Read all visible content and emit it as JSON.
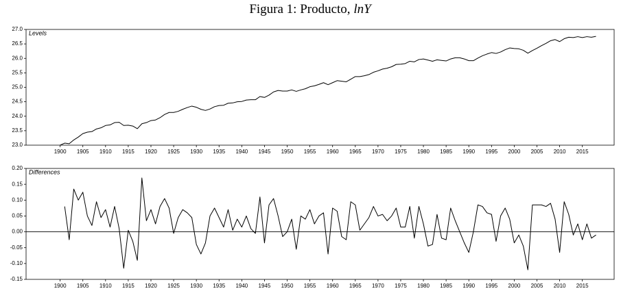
{
  "title": {
    "text": "Figura 1: Producto, ",
    "math": "lnY"
  },
  "chart_data": [
    {
      "type": "line",
      "label": "Levels",
      "color": "#000000",
      "x": [
        1900,
        1901,
        1902,
        1903,
        1904,
        1905,
        1906,
        1907,
        1908,
        1909,
        1910,
        1911,
        1912,
        1913,
        1914,
        1915,
        1916,
        1917,
        1918,
        1919,
        1920,
        1921,
        1922,
        1923,
        1924,
        1925,
        1926,
        1927,
        1928,
        1929,
        1930,
        1931,
        1932,
        1933,
        1934,
        1935,
        1936,
        1937,
        1938,
        1939,
        1940,
        1941,
        1942,
        1943,
        1944,
        1945,
        1946,
        1947,
        1948,
        1949,
        1950,
        1951,
        1952,
        1953,
        1954,
        1955,
        1956,
        1957,
        1958,
        1959,
        1960,
        1961,
        1962,
        1963,
        1964,
        1965,
        1966,
        1967,
        1968,
        1969,
        1970,
        1971,
        1972,
        1973,
        1974,
        1975,
        1976,
        1977,
        1978,
        1979,
        1980,
        1981,
        1982,
        1983,
        1984,
        1985,
        1986,
        1987,
        1988,
        1989,
        1990,
        1991,
        1992,
        1993,
        1994,
        1995,
        1996,
        1997,
        1998,
        1999,
        2000,
        2001,
        2002,
        2003,
        2004,
        2005,
        2006,
        2007,
        2008,
        2009,
        2010,
        2011,
        2012,
        2013,
        2014,
        2015,
        2016,
        2017,
        2018
      ],
      "values": [
        23.0,
        23.07,
        23.05,
        23.18,
        23.28,
        23.4,
        23.45,
        23.47,
        23.56,
        23.6,
        23.68,
        23.7,
        23.78,
        23.79,
        23.68,
        23.69,
        23.66,
        23.57,
        23.74,
        23.78,
        23.85,
        23.87,
        23.95,
        24.06,
        24.13,
        24.13,
        24.17,
        24.24,
        24.3,
        24.35,
        24.31,
        24.24,
        24.2,
        24.25,
        24.33,
        24.37,
        24.38,
        24.45,
        24.46,
        24.5,
        24.51,
        24.56,
        24.57,
        24.57,
        24.68,
        24.65,
        24.73,
        24.84,
        24.89,
        24.87,
        24.87,
        24.91,
        24.86,
        24.91,
        24.95,
        25.02,
        25.05,
        25.1,
        25.16,
        25.09,
        25.16,
        25.23,
        25.21,
        25.19,
        25.28,
        25.37,
        25.37,
        25.4,
        25.44,
        25.52,
        25.57,
        25.63,
        25.66,
        25.71,
        25.79,
        25.8,
        25.82,
        25.9,
        25.88,
        25.96,
        25.98,
        25.94,
        25.9,
        25.95,
        25.93,
        25.91,
        25.98,
        26.02,
        26.02,
        25.98,
        25.92,
        25.92,
        26.01,
        26.09,
        26.15,
        26.2,
        26.17,
        26.22,
        26.3,
        26.36,
        26.34,
        26.33,
        26.28,
        26.18,
        26.27,
        26.35,
        26.44,
        26.52,
        26.61,
        26.65,
        26.58,
        26.68,
        26.73,
        26.72,
        26.75,
        26.72,
        26.75,
        26.73,
        26.76
      ],
      "xlim": [
        1892.5,
        2022
      ],
      "xticks": [
        1900,
        1905,
        1910,
        1915,
        1920,
        1925,
        1930,
        1935,
        1940,
        1945,
        1950,
        1955,
        1960,
        1965,
        1970,
        1975,
        1980,
        1985,
        1990,
        1995,
        2000,
        2005,
        2010,
        2015
      ],
      "ylim": [
        23,
        27
      ],
      "yticks": [
        {
          "value": 23,
          "label": "23.0"
        },
        23.5,
        {
          "value": 24,
          "label": "24.0"
        },
        24.5,
        {
          "value": 25,
          "label": "25.0"
        },
        25.5,
        {
          "value": 26,
          "label": "26.0"
        },
        26.5,
        {
          "value": 27,
          "label": "27.0"
        }
      ],
      "zero_line": false
    },
    {
      "type": "line",
      "label": "Differences",
      "color": "#000000",
      "x": [
        1900,
        1901,
        1902,
        1903,
        1904,
        1905,
        1906,
        1907,
        1908,
        1909,
        1910,
        1911,
        1912,
        1913,
        1914,
        1915,
        1916,
        1917,
        1918,
        1919,
        1920,
        1921,
        1922,
        1923,
        1924,
        1925,
        1926,
        1927,
        1928,
        1929,
        1930,
        1931,
        1932,
        1933,
        1934,
        1935,
        1936,
        1937,
        1938,
        1939,
        1940,
        1941,
        1942,
        1943,
        1944,
        1945,
        1946,
        1947,
        1948,
        1949,
        1950,
        1951,
        1952,
        1953,
        1954,
        1955,
        1956,
        1957,
        1958,
        1959,
        1960,
        1961,
        1962,
        1963,
        1964,
        1965,
        1966,
        1967,
        1968,
        1969,
        1970,
        1971,
        1972,
        1973,
        1974,
        1975,
        1976,
        1977,
        1978,
        1979,
        1980,
        1981,
        1982,
        1983,
        1984,
        1985,
        1986,
        1987,
        1988,
        1989,
        1990,
        1991,
        1992,
        1993,
        1994,
        1995,
        1996,
        1997,
        1998,
        1999,
        2000,
        2001,
        2002,
        2003,
        2004,
        2005,
        2006,
        2007,
        2008,
        2009,
        2010,
        2011,
        2012,
        2013,
        2014,
        2015,
        2016,
        2017,
        2018
      ],
      "values": [
        null,
        0.08,
        -0.025,
        0.135,
        0.1,
        0.125,
        0.05,
        0.02,
        0.095,
        0.045,
        0.07,
        0.015,
        0.08,
        0.01,
        -0.115,
        0.005,
        -0.03,
        -0.09,
        0.17,
        0.035,
        0.07,
        0.025,
        0.08,
        0.105,
        0.075,
        -0.005,
        0.045,
        0.07,
        0.06,
        0.045,
        -0.04,
        -0.07,
        -0.035,
        0.05,
        0.075,
        0.045,
        0.015,
        0.07,
        0.005,
        0.04,
        0.015,
        0.05,
        0.01,
        -0.005,
        0.11,
        -0.035,
        0.085,
        0.105,
        0.05,
        -0.015,
        0.0,
        0.04,
        -0.055,
        0.05,
        0.04,
        0.07,
        0.025,
        0.05,
        0.06,
        -0.07,
        0.075,
        0.065,
        -0.015,
        -0.025,
        0.095,
        0.085,
        0.005,
        0.025,
        0.045,
        0.08,
        0.05,
        0.055,
        0.035,
        0.05,
        0.075,
        0.015,
        0.015,
        0.08,
        -0.02,
        0.08,
        0.025,
        -0.045,
        -0.04,
        0.055,
        -0.02,
        -0.025,
        0.075,
        0.035,
        0.0,
        -0.035,
        -0.065,
        0.0,
        0.085,
        0.08,
        0.06,
        0.055,
        -0.03,
        0.05,
        0.075,
        0.04,
        -0.035,
        -0.01,
        -0.045,
        -0.12,
        0.085,
        0.085,
        0.085,
        0.08,
        0.09,
        0.04,
        -0.065,
        0.095,
        0.055,
        -0.01,
        0.025,
        -0.025,
        0.025,
        -0.02,
        -0.01
      ],
      "xlim": [
        1892.5,
        2022
      ],
      "xticks": [
        1900,
        1905,
        1910,
        1915,
        1920,
        1925,
        1930,
        1935,
        1940,
        1945,
        1950,
        1955,
        1960,
        1965,
        1970,
        1975,
        1980,
        1985,
        1990,
        1995,
        2000,
        2005,
        2010,
        2015
      ],
      "ylim": [
        -0.15,
        0.2
      ],
      "yticks": [
        -0.15,
        {
          "value": -0.1,
          "label": "-0.10"
        },
        -0.05,
        {
          "value": 0,
          "label": "0.00"
        },
        0.05,
        {
          "value": 0.1,
          "label": "0.10"
        },
        0.15,
        {
          "value": 0.2,
          "label": "0.20"
        }
      ],
      "zero_line": true
    }
  ]
}
